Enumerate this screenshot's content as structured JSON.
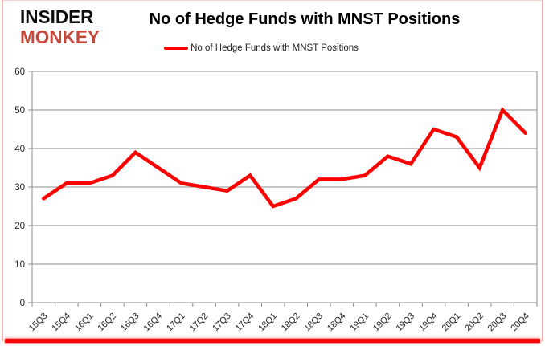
{
  "logo": {
    "line1": "INSIDER",
    "line2": "MONKEY"
  },
  "header": {
    "title": "No of Hedge Funds with MNST Positions"
  },
  "legend": {
    "label": "No of Hedge Funds with MNST Positions"
  },
  "colors": {
    "series": "#ff0000",
    "grid": "#8c8c8c",
    "axis_text": "#1f1f1f",
    "logo_accent": "#c9473a",
    "bottom_bar": "#fa0505",
    "side_border": "#f0b3ae",
    "top_border": "#f6d0cc"
  },
  "chart_data": {
    "type": "line",
    "title": "No of Hedge Funds with MNST Positions",
    "categories": [
      "15Q3",
      "15Q4",
      "16Q1",
      "16Q2",
      "16Q3",
      "16Q4",
      "17Q1",
      "17Q2",
      "17Q3",
      "17Q4",
      "18Q1",
      "18Q2",
      "18Q3",
      "18Q4",
      "19Q1",
      "19Q2",
      "19Q3",
      "19Q4",
      "20Q1",
      "20Q2",
      "20Q3",
      "20Q4"
    ],
    "series": [
      {
        "name": "No of Hedge Funds with MNST Positions",
        "color": "#ff0000",
        "values": [
          27,
          31,
          31,
          33,
          39,
          35,
          31,
          30,
          29,
          33,
          25,
          27,
          32,
          32,
          33,
          38,
          36,
          45,
          43,
          35,
          50,
          44
        ]
      }
    ],
    "xlabel": "",
    "ylabel": "",
    "ylim": [
      0,
      60
    ],
    "yticks": [
      0,
      10,
      20,
      30,
      40,
      50,
      60
    ],
    "grid": true,
    "legend_position": "top",
    "x_label_rotation": -45
  }
}
